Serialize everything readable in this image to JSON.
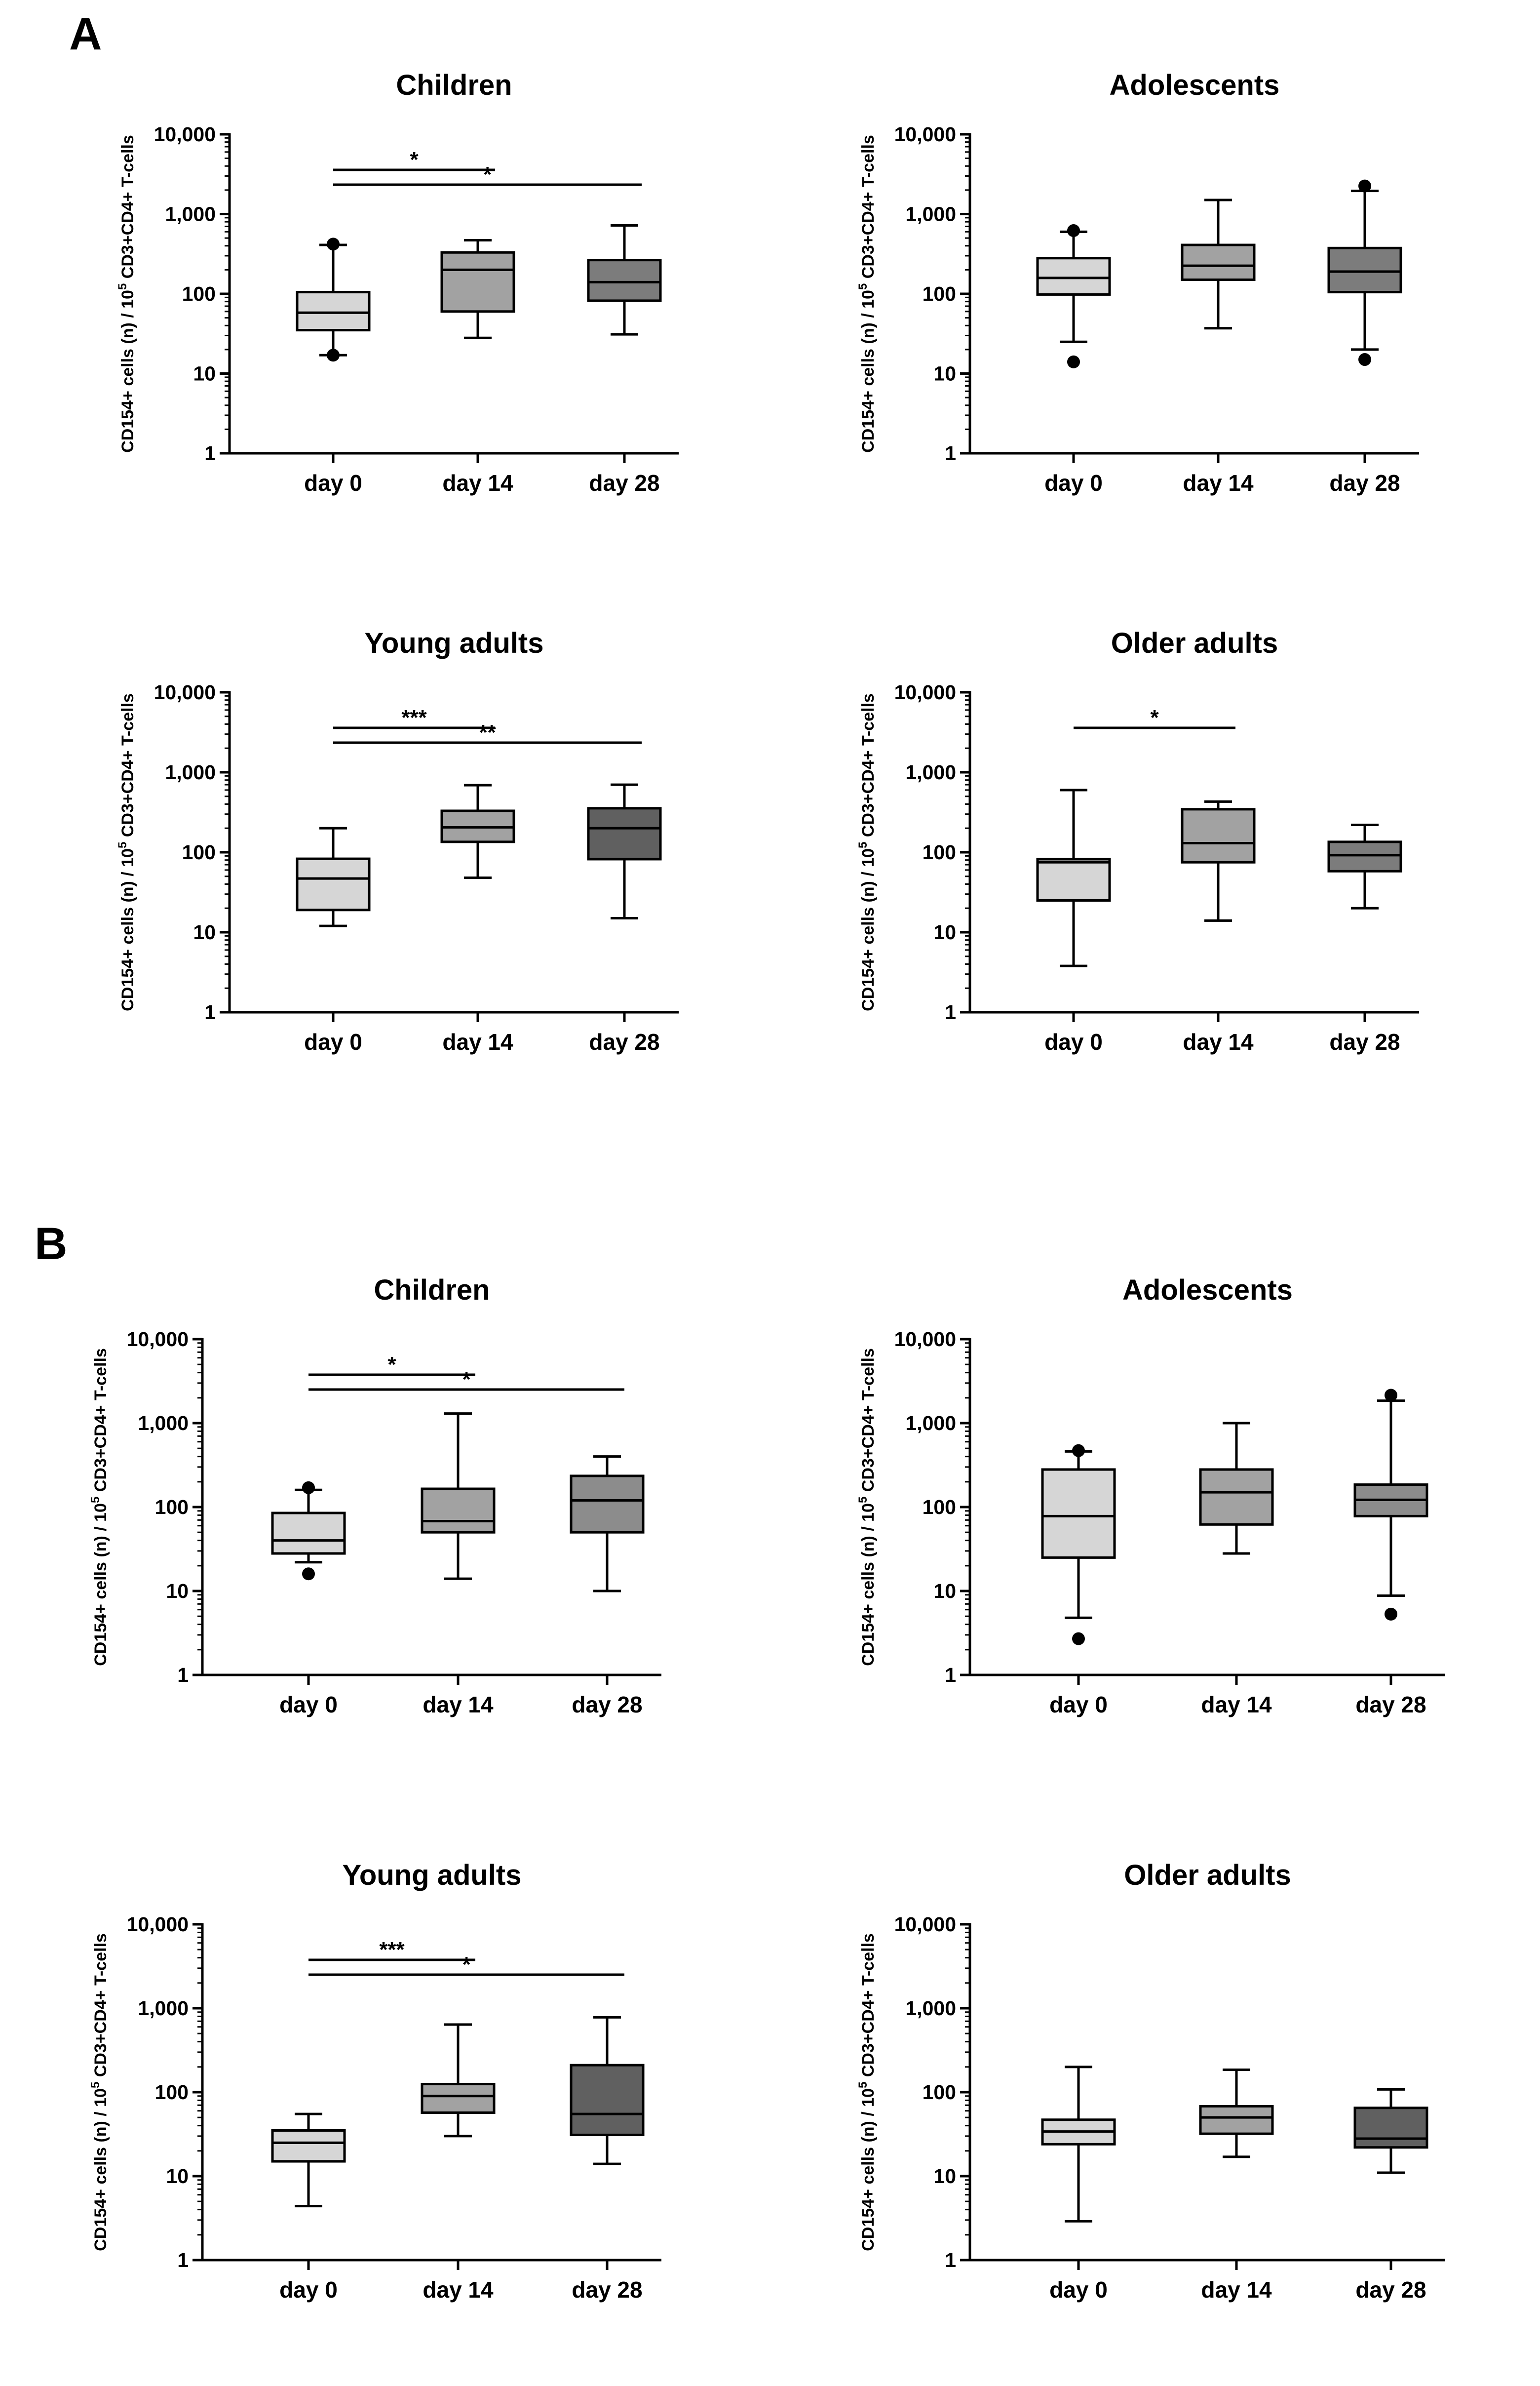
{
  "panels": [
    "A",
    "B"
  ],
  "chart_data": [
    {
      "type": "box",
      "panel": "A",
      "title": "Children",
      "ylabel_parts": [
        "CD154+ cells (n) / 10",
        "5",
        " CD3+CD4+ T-cells"
      ],
      "yscale": "log",
      "ylim": [
        1,
        10000
      ],
      "yticks": [
        1,
        10,
        100,
        1000,
        10000
      ],
      "ytick_labels": [
        "1",
        "10",
        "100",
        "1,000",
        "10,000"
      ],
      "categories": [
        "day 0",
        "day 14",
        "day 28"
      ],
      "fill_colors": [
        "#d6d6d6",
        "#a2a2a2",
        "#7c7c7c"
      ],
      "boxes": [
        {
          "category": "day 0",
          "whisker_low": 17,
          "q1": 35,
          "median": 58,
          "q3": 105,
          "whisker_high": 410,
          "outliers": [
            17,
            420
          ]
        },
        {
          "category": "day 14",
          "whisker_low": 28,
          "q1": 60,
          "median": 200,
          "q3": 330,
          "whisker_high": 470,
          "outliers": []
        },
        {
          "category": "day 28",
          "whisker_low": 31,
          "q1": 82,
          "median": 140,
          "q3": 265,
          "whisker_high": 720,
          "outliers": []
        }
      ],
      "significance": [
        {
          "from": "day 0",
          "to": "day 14",
          "label": "*"
        },
        {
          "from": "day 0",
          "to": "day 28",
          "label": "*"
        }
      ]
    },
    {
      "type": "box",
      "panel": "A",
      "title": "Adolescents",
      "ylabel_parts": [
        "CD154+ cells (n) / 10",
        "5",
        " CD3+CD4+ T-cells"
      ],
      "yscale": "log",
      "ylim": [
        1,
        10000
      ],
      "yticks": [
        1,
        10,
        100,
        1000,
        10000
      ],
      "ytick_labels": [
        "1",
        "10",
        "100",
        "1,000",
        "10,000"
      ],
      "categories": [
        "day 0",
        "day 14",
        "day 28"
      ],
      "fill_colors": [
        "#d6d6d6",
        "#a2a2a2",
        "#7c7c7c"
      ],
      "boxes": [
        {
          "category": "day 0",
          "whisker_low": 25,
          "q1": 98,
          "median": 158,
          "q3": 280,
          "whisker_high": 600,
          "outliers": [
            14,
            620
          ]
        },
        {
          "category": "day 14",
          "whisker_low": 37,
          "q1": 150,
          "median": 225,
          "q3": 410,
          "whisker_high": 1500,
          "outliers": []
        },
        {
          "category": "day 28",
          "whisker_low": 20,
          "q1": 105,
          "median": 190,
          "q3": 375,
          "whisker_high": 1950,
          "outliers": [
            15,
            2250
          ]
        }
      ],
      "significance": []
    },
    {
      "type": "box",
      "panel": "A",
      "title": "Young adults",
      "ylabel_parts": [
        "CD154+ cells (n) / 10",
        "5",
        " CD3+CD4+ T-cells"
      ],
      "yscale": "log",
      "ylim": [
        1,
        10000
      ],
      "yticks": [
        1,
        10,
        100,
        1000,
        10000
      ],
      "ytick_labels": [
        "1",
        "10",
        "100",
        "1,000",
        "10,000"
      ],
      "categories": [
        "day 0",
        "day 14",
        "day 28"
      ],
      "fill_colors": [
        "#d6d6d6",
        "#a2a2a2",
        "#606060"
      ],
      "boxes": [
        {
          "category": "day 0",
          "whisker_low": 12,
          "q1": 19,
          "median": 47,
          "q3": 83,
          "whisker_high": 200,
          "outliers": []
        },
        {
          "category": "day 14",
          "whisker_low": 48,
          "q1": 135,
          "median": 205,
          "q3": 330,
          "whisker_high": 690,
          "outliers": []
        },
        {
          "category": "day 28",
          "whisker_low": 15,
          "q1": 82,
          "median": 200,
          "q3": 355,
          "whisker_high": 700,
          "outliers": []
        }
      ],
      "significance": [
        {
          "from": "day 0",
          "to": "day 14",
          "label": "***"
        },
        {
          "from": "day 0",
          "to": "day 28",
          "label": "**"
        }
      ]
    },
    {
      "type": "box",
      "panel": "A",
      "title": "Older adults",
      "ylabel_parts": [
        "CD154+ cells (n) / 10",
        "5",
        " CD3+CD4+ T-cells"
      ],
      "yscale": "log",
      "ylim": [
        1,
        10000
      ],
      "yticks": [
        1,
        10,
        100,
        1000,
        10000
      ],
      "ytick_labels": [
        "1",
        "10",
        "100",
        "1,000",
        "10,000"
      ],
      "categories": [
        "day 0",
        "day 14",
        "day 28"
      ],
      "fill_colors": [
        "#d6d6d6",
        "#a2a2a2",
        "#7c7c7c"
      ],
      "boxes": [
        {
          "category": "day 0",
          "whisker_low": 3.8,
          "q1": 25,
          "median": 75,
          "q3": 82,
          "whisker_high": 600,
          "outliers": []
        },
        {
          "category": "day 14",
          "whisker_low": 14,
          "q1": 75,
          "median": 130,
          "q3": 345,
          "whisker_high": 430,
          "outliers": []
        },
        {
          "category": "day 28",
          "whisker_low": 20,
          "q1": 58,
          "median": 92,
          "q3": 135,
          "whisker_high": 220,
          "outliers": []
        }
      ],
      "significance": [
        {
          "from": "day 0",
          "to": "day 14",
          "label": "*"
        }
      ]
    },
    {
      "type": "box",
      "panel": "B",
      "title": "Children",
      "ylabel_parts": [
        "CD154+ cells (n) / 10",
        "5",
        " CD3+CD4+ T-cells"
      ],
      "yscale": "log",
      "ylim": [
        1,
        10000
      ],
      "yticks": [
        1,
        10,
        100,
        1000,
        10000
      ],
      "ytick_labels": [
        "1",
        "10",
        "100",
        "1,000",
        "10,000"
      ],
      "categories": [
        "day 0",
        "day 14",
        "day 28"
      ],
      "fill_colors": [
        "#d6d6d6",
        "#a2a2a2",
        "#8c8c8c"
      ],
      "boxes": [
        {
          "category": "day 0",
          "whisker_low": 22,
          "q1": 28,
          "median": 40,
          "q3": 85,
          "whisker_high": 160,
          "outliers": [
            16,
            170
          ]
        },
        {
          "category": "day 14",
          "whisker_low": 14,
          "q1": 50,
          "median": 68,
          "q3": 165,
          "whisker_high": 1300,
          "outliers": []
        },
        {
          "category": "day 28",
          "whisker_low": 10,
          "q1": 50,
          "median": 120,
          "q3": 235,
          "whisker_high": 400,
          "outliers": []
        }
      ],
      "significance": [
        {
          "from": "day 0",
          "to": "day 14",
          "label": "*"
        },
        {
          "from": "day 0",
          "to": "day 28",
          "label": "*"
        }
      ]
    },
    {
      "type": "box",
      "panel": "B",
      "title": "Adolescents",
      "ylabel_parts": [
        "CD154+ cells (n) / 10",
        "5",
        " CD3+CD4+ T-cells"
      ],
      "yscale": "log",
      "ylim": [
        1,
        10000
      ],
      "yticks": [
        1,
        10,
        100,
        1000,
        10000
      ],
      "ytick_labels": [
        "1",
        "10",
        "100",
        "1,000",
        "10,000"
      ],
      "categories": [
        "day 0",
        "day 14",
        "day 28"
      ],
      "fill_colors": [
        "#d6d6d6",
        "#a2a2a2",
        "#8c8c8c"
      ],
      "boxes": [
        {
          "category": "day 0",
          "whisker_low": 4.8,
          "q1": 25,
          "median": 78,
          "q3": 280,
          "whisker_high": 460,
          "outliers": [
            2.7,
            470
          ]
        },
        {
          "category": "day 14",
          "whisker_low": 28,
          "q1": 62,
          "median": 150,
          "q3": 280,
          "whisker_high": 1000,
          "outliers": []
        },
        {
          "category": "day 28",
          "whisker_low": 8.8,
          "q1": 78,
          "median": 122,
          "q3": 185,
          "whisker_high": 1850,
          "outliers": [
            5.3,
            2150
          ]
        }
      ],
      "significance": []
    },
    {
      "type": "box",
      "panel": "B",
      "title": "Young adults",
      "ylabel_parts": [
        "CD154+ cells (n) / 10",
        "5",
        " CD3+CD4+ T-cells"
      ],
      "yscale": "log",
      "ylim": [
        1,
        10000
      ],
      "yticks": [
        1,
        10,
        100,
        1000,
        10000
      ],
      "ytick_labels": [
        "1",
        "10",
        "100",
        "1,000",
        "10,000"
      ],
      "categories": [
        "day 0",
        "day 14",
        "day 28"
      ],
      "fill_colors": [
        "#d6d6d6",
        "#a2a2a2",
        "#606060"
      ],
      "boxes": [
        {
          "category": "day 0",
          "whisker_low": 4.4,
          "q1": 15,
          "median": 25,
          "q3": 35,
          "whisker_high": 55,
          "outliers": []
        },
        {
          "category": "day 14",
          "whisker_low": 30,
          "q1": 57,
          "median": 90,
          "q3": 125,
          "whisker_high": 640,
          "outliers": []
        },
        {
          "category": "day 28",
          "whisker_low": 14,
          "q1": 31,
          "median": 55,
          "q3": 210,
          "whisker_high": 780,
          "outliers": []
        }
      ],
      "significance": [
        {
          "from": "day 0",
          "to": "day 14",
          "label": "***"
        },
        {
          "from": "day 0",
          "to": "day 28",
          "label": "*"
        }
      ]
    },
    {
      "type": "box",
      "panel": "B",
      "title": "Older adults",
      "ylabel_parts": [
        "CD154+ cells (n) / 10",
        "5",
        " CD3+CD4+ T-cells"
      ],
      "yscale": "log",
      "ylim": [
        1,
        10000
      ],
      "yticks": [
        1,
        10,
        100,
        1000,
        10000
      ],
      "ytick_labels": [
        "1",
        "10",
        "100",
        "1,000",
        "10,000"
      ],
      "categories": [
        "day 0",
        "day 14",
        "day 28"
      ],
      "fill_colors": [
        "#d6d6d6",
        "#a2a2a2",
        "#606060"
      ],
      "boxes": [
        {
          "category": "day 0",
          "whisker_low": 2.9,
          "q1": 24,
          "median": 34,
          "q3": 47,
          "whisker_high": 200,
          "outliers": []
        },
        {
          "category": "day 14",
          "whisker_low": 17,
          "q1": 32,
          "median": 50,
          "q3": 68,
          "whisker_high": 185,
          "outliers": []
        },
        {
          "category": "day 28",
          "whisker_low": 11,
          "q1": 22,
          "median": 28,
          "q3": 65,
          "whisker_high": 108,
          "outliers": []
        }
      ],
      "significance": []
    }
  ]
}
